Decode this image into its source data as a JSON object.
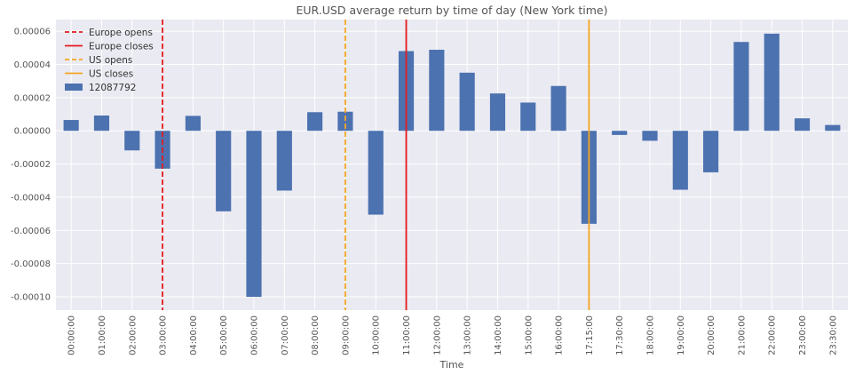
{
  "chart_data": {
    "type": "bar",
    "title": "EUR.USD average return by time of day (New York time)",
    "xlabel": "Time",
    "ylabel": "",
    "ylim": [
      -0.000108,
      6.7e-05
    ],
    "yticks": [
      -0.0001,
      -8e-05,
      -6e-05,
      -4e-05,
      -2e-05,
      0.0,
      2e-05,
      4e-05,
      6e-05
    ],
    "ytick_labels": [
      "-0.00010",
      "-0.00008",
      "-0.00006",
      "-0.00004",
      "-0.00002",
      "0.00000",
      "0.00002",
      "0.00004",
      "0.00006"
    ],
    "grid": true,
    "legend_position": "top-left",
    "categories": [
      "00:00:00",
      "01:00:00",
      "02:00:00",
      "03:00:00",
      "04:00:00",
      "05:00:00",
      "06:00:00",
      "07:00:00",
      "08:00:00",
      "09:00:00",
      "10:00:00",
      "11:00:00",
      "12:00:00",
      "13:00:00",
      "14:00:00",
      "15:00:00",
      "16:00:00",
      "17:15:00",
      "17:30:00",
      "18:00:00",
      "19:00:00",
      "20:00:00",
      "21:00:00",
      "22:00:00",
      "23:00:00",
      "23:30:00"
    ],
    "series": [
      {
        "name": "12087792",
        "color": "#4c72b0",
        "values": [
          6.5e-06,
          9.2e-06,
          -1.18e-05,
          -2.28e-05,
          9e-06,
          -4.85e-05,
          -0.0001,
          -3.6e-05,
          1.12e-05,
          1.15e-05,
          -5.05e-05,
          4.8e-05,
          4.88e-05,
          3.5e-05,
          2.25e-05,
          1.7e-05,
          2.7e-05,
          -5.6e-05,
          -2.5e-06,
          -6e-06,
          -3.55e-05,
          -2.5e-05,
          5.35e-05,
          5.85e-05,
          7.5e-06,
          3.5e-06
        ]
      }
    ],
    "vlines": [
      {
        "name": "Europe opens",
        "category_index": 3,
        "color": "#e41a1c",
        "style": "dashed"
      },
      {
        "name": "Europe closes",
        "category_index": 11,
        "color": "#e41a1c",
        "style": "solid"
      },
      {
        "name": "US opens",
        "category_index": 9,
        "color": "#f5a623",
        "style": "dashed"
      },
      {
        "name": "US closes",
        "category_index": 17,
        "color": "#f5a623",
        "style": "solid"
      }
    ],
    "legend": [
      {
        "label": "Europe opens",
        "kind": "line",
        "color": "#e41a1c",
        "style": "dashed"
      },
      {
        "label": "Europe closes",
        "kind": "line",
        "color": "#e41a1c",
        "style": "solid"
      },
      {
        "label": "US opens",
        "kind": "line",
        "color": "#f5a623",
        "style": "dashed"
      },
      {
        "label": "US closes",
        "kind": "line",
        "color": "#f5a623",
        "style": "solid"
      },
      {
        "label": "12087792",
        "kind": "bar",
        "color": "#4c72b0",
        "style": "solid"
      }
    ],
    "background_color": "#eaeaf2",
    "grid_color": "#ffffff"
  }
}
